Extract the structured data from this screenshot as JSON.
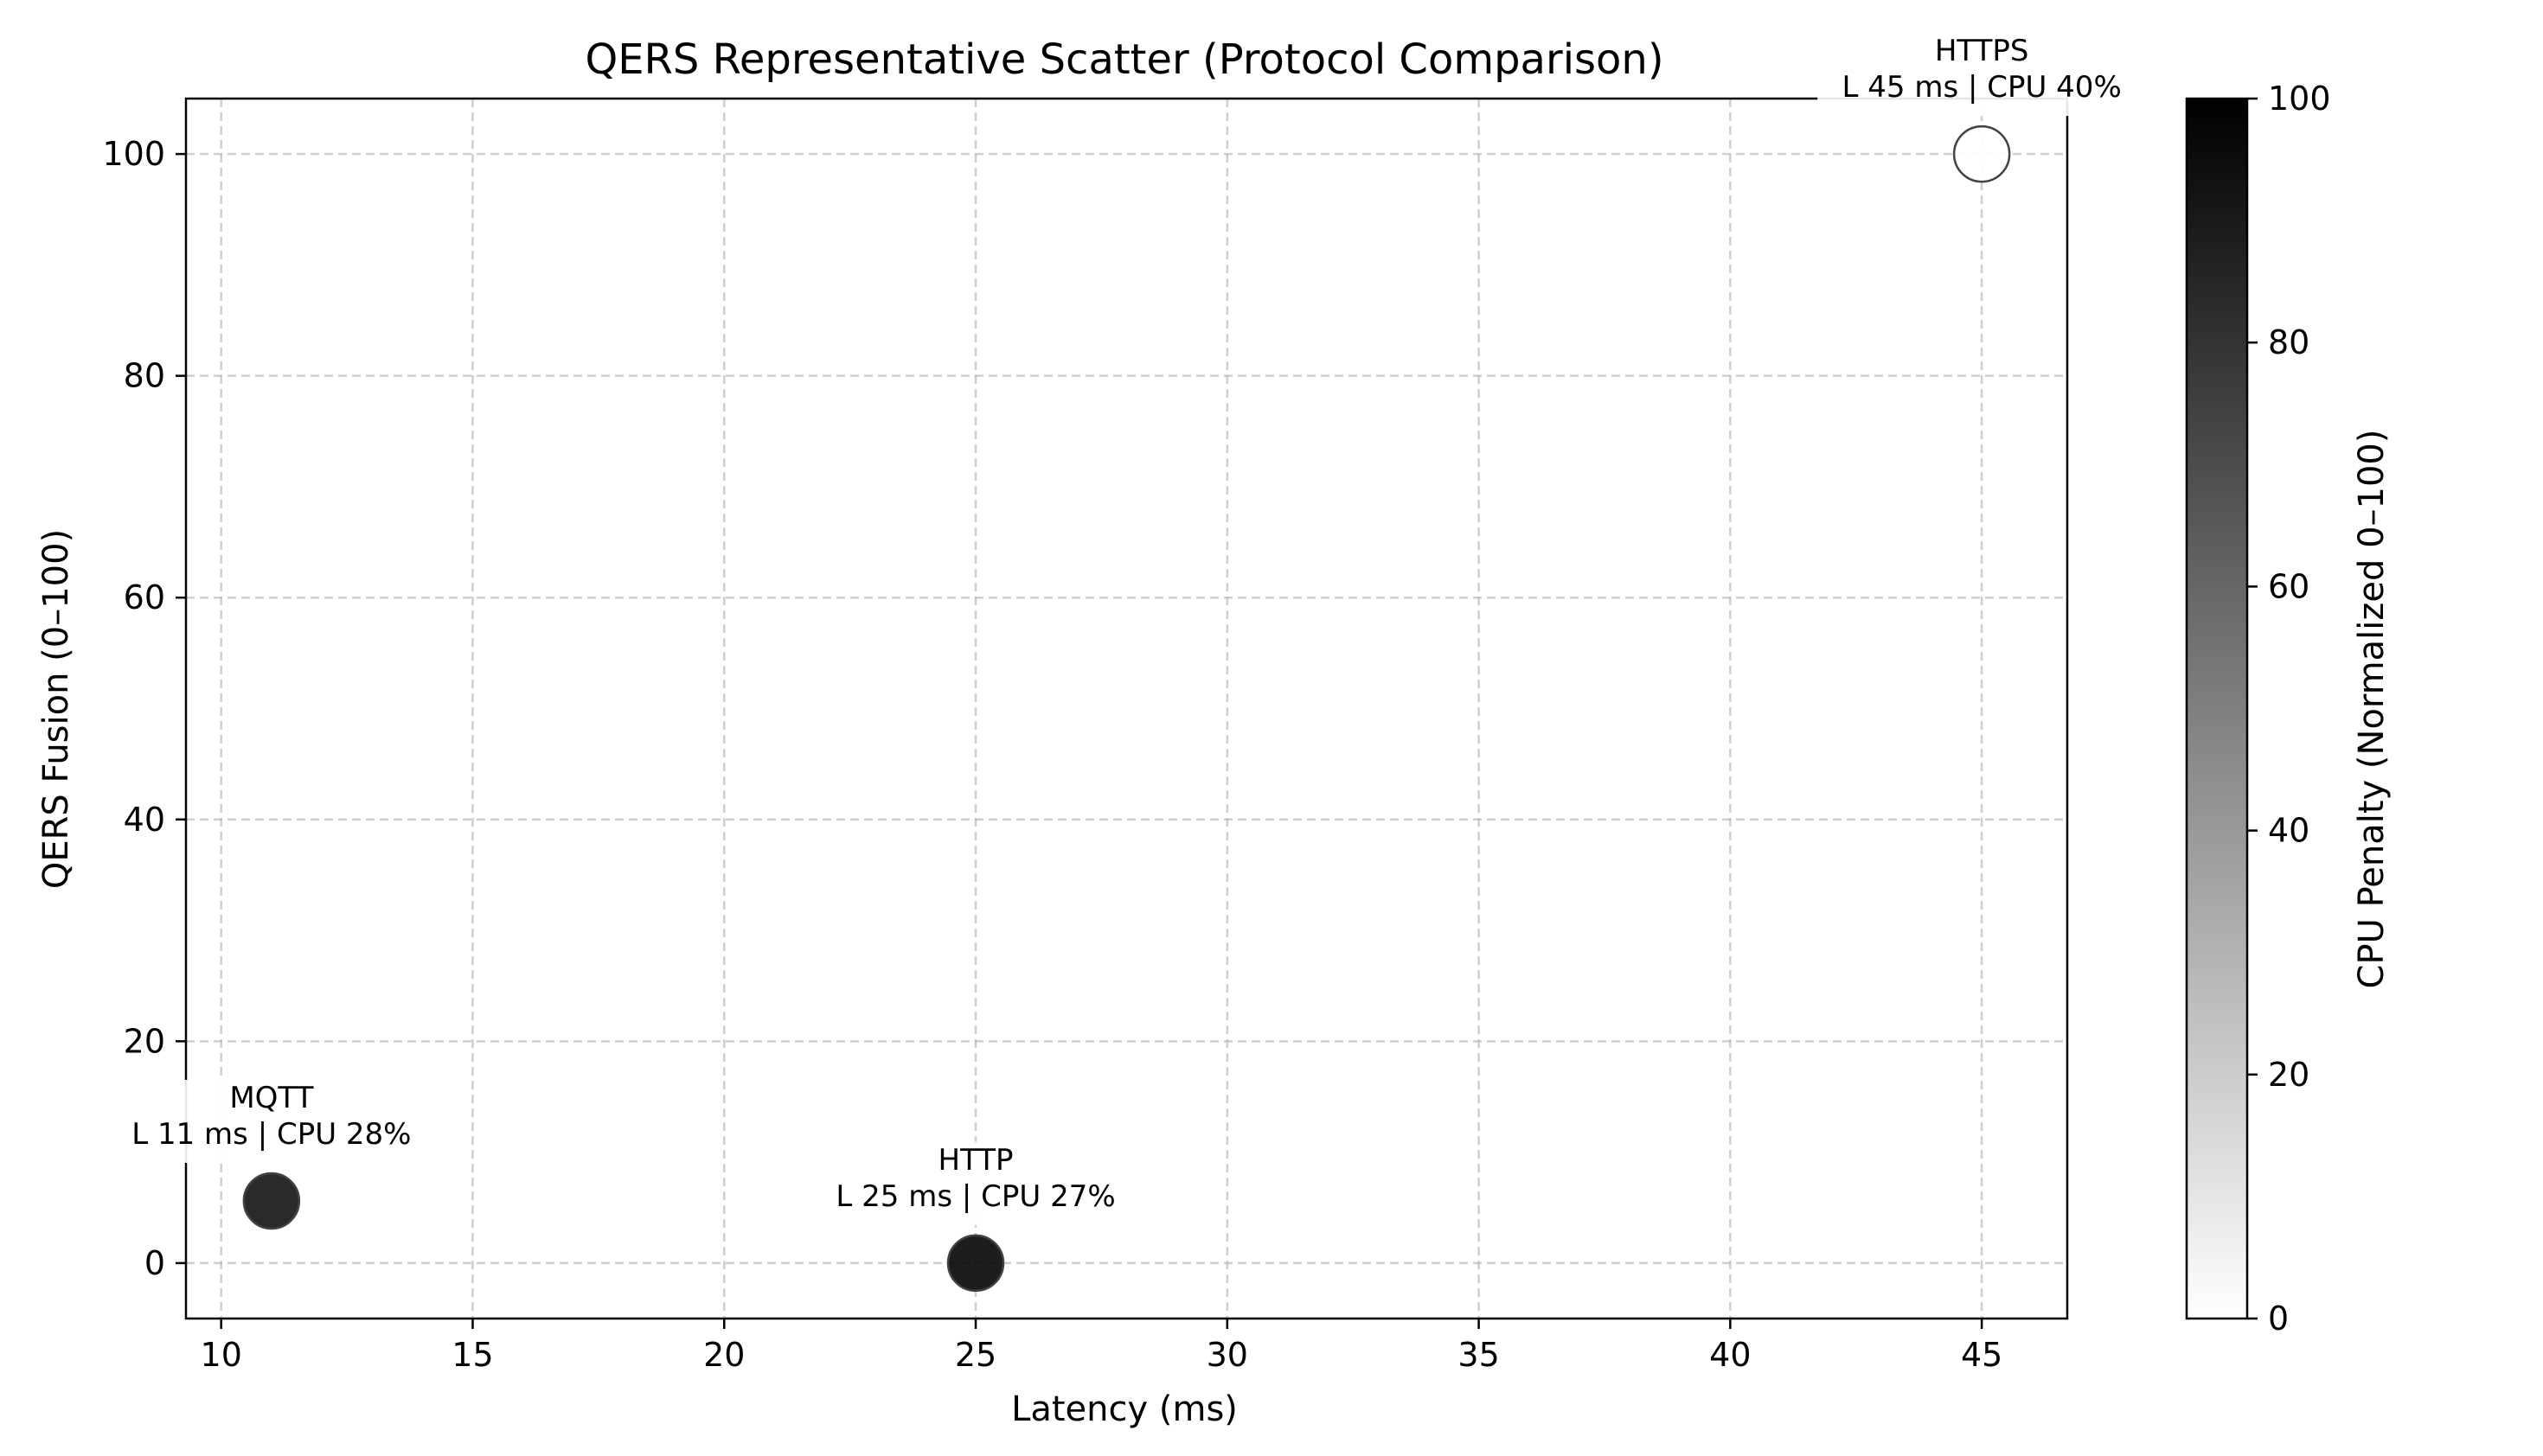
{
  "chart_data": {
    "type": "scatter",
    "title": "QERS Representative Scatter (Protocol Comparison)",
    "xlabel": "Latency (ms)",
    "ylabel": "QERS Fusion (0–100)",
    "xlim": [
      9.3,
      46.7
    ],
    "ylim": [
      -5,
      105
    ],
    "x_ticks": [
      10,
      15,
      20,
      25,
      30,
      35,
      40,
      45
    ],
    "y_ticks": [
      0,
      20,
      40,
      60,
      80,
      100
    ],
    "grid": true,
    "colormap": "Greys",
    "colorbar": {
      "label": "CPU Penalty (Normalized 0–100)",
      "range": [
        0,
        100
      ],
      "ticks": [
        0,
        20,
        40,
        60,
        80,
        100
      ]
    },
    "points": [
      {
        "name": "MQTT",
        "x": 11,
        "y": 5.6,
        "cpu_penalty": 94,
        "annotation": [
          "MQTT",
          "L 11 ms | CPU 28%"
        ]
      },
      {
        "name": "HTTP",
        "x": 25,
        "y": 0,
        "cpu_penalty": 100,
        "annotation": [
          "HTTP",
          "L 25 ms | CPU 27%"
        ]
      },
      {
        "name": "HTTPS",
        "x": 45,
        "y": 100,
        "cpu_penalty": 0,
        "annotation": [
          "HTTPS",
          "L 45 ms | CPU 40%"
        ]
      }
    ]
  }
}
